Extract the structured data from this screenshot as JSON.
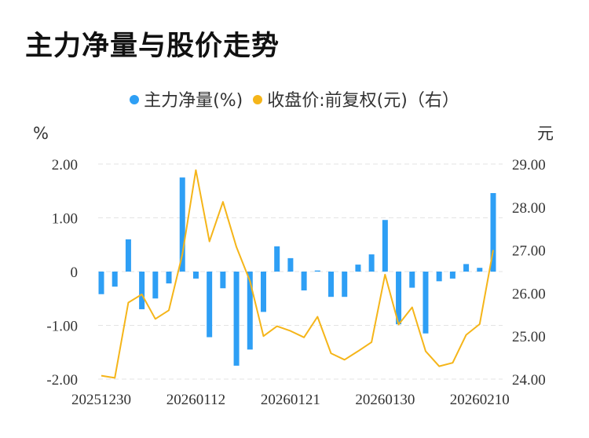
{
  "chart_data": {
    "type": "bar",
    "title": "主力净量与股价走势",
    "legend": {
      "position": "top",
      "items": [
        {
          "label": "主力净量(%)",
          "color": "#2e9ff5",
          "marker": "dot"
        },
        {
          "label": "收盘价:前复权(元)（右）",
          "color": "#f5b519",
          "marker": "dot"
        }
      ]
    },
    "y_left": {
      "unit": "%",
      "ticks": [
        "2.00",
        "1.00",
        "0",
        "-1.00",
        "-2.00"
      ],
      "ylim": [
        -2,
        2
      ]
    },
    "y_right": {
      "unit": "元",
      "ticks": [
        "29.00",
        "28.00",
        "27.00",
        "26.00",
        "25.00",
        "24.00"
      ],
      "ylim": [
        24,
        29
      ]
    },
    "x_tick_labels": [
      "20251230",
      "20260112",
      "20260121",
      "20260130",
      "20260210"
    ],
    "x_tick_indices": [
      0,
      7,
      14,
      21,
      28
    ],
    "grid": true,
    "series": [
      {
        "name": "主力净量(%)",
        "type": "bar",
        "axis": "left",
        "color": "#2e9ff5",
        "values": [
          -0.42,
          -0.28,
          0.6,
          -0.7,
          -0.5,
          -0.22,
          1.75,
          -0.13,
          -1.22,
          -0.31,
          -1.75,
          -1.45,
          -0.75,
          0.47,
          0.25,
          -0.35,
          0.02,
          -0.47,
          -0.47,
          0.13,
          0.32,
          0.96,
          -0.98,
          -0.3,
          -1.15,
          -0.18,
          -0.13,
          0.14,
          0.07,
          1.46
        ]
      },
      {
        "name": "收盘价:前复权(元)（右）",
        "type": "line",
        "axis": "right",
        "color": "#f5b519",
        "values": [
          24.08,
          24.03,
          25.78,
          25.97,
          25.4,
          25.6,
          26.9,
          28.86,
          27.2,
          28.12,
          27.07,
          26.28,
          25.0,
          25.23,
          25.12,
          24.97,
          25.45,
          24.6,
          24.45,
          24.65,
          24.86,
          26.43,
          25.27,
          25.67,
          24.65,
          24.3,
          24.38,
          25.03,
          25.28,
          27.0
        ]
      }
    ]
  }
}
